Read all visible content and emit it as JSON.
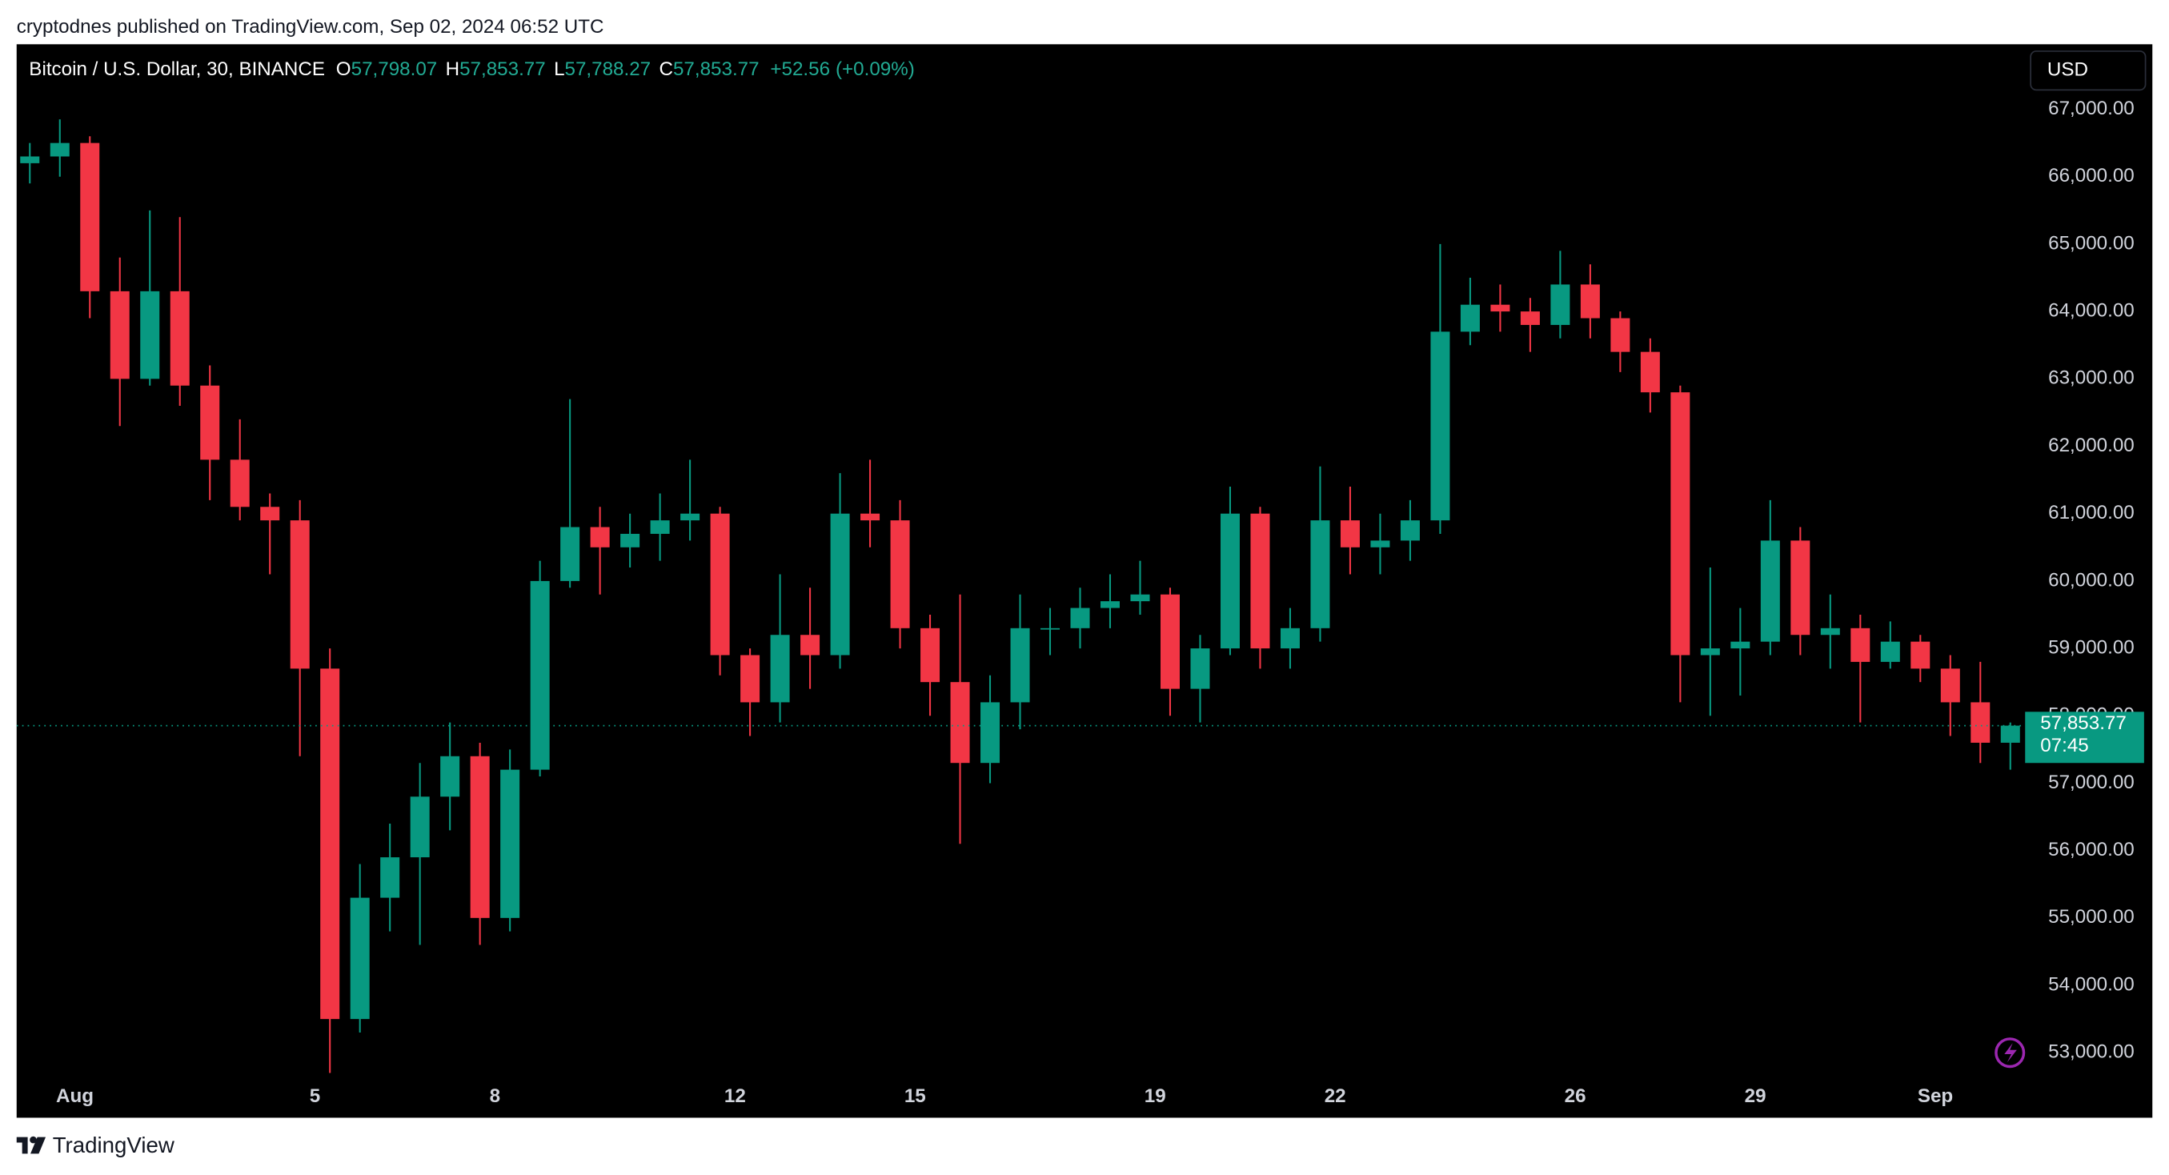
{
  "header": {
    "published": "cryptodnes published on TradingView.com, Sep 02, 2024 06:52 UTC"
  },
  "chart_data": {
    "type": "candlestick",
    "title": "Bitcoin / U.S. Dollar, 30, BINANCE",
    "ohlc_legend": [
      {
        "name": "O",
        "value": 57798.07,
        "label": "57,798.07"
      },
      {
        "name": "H",
        "value": 57853.77,
        "label": "57,853.77"
      },
      {
        "name": "L",
        "value": 57788.27,
        "label": "57,788.27"
      },
      {
        "name": "C",
        "value": 57853.77,
        "label": "57,853.77"
      }
    ],
    "change": {
      "value": 52.56,
      "label": "+52.56"
    },
    "change_pct": {
      "value": 0.09,
      "label": "(+0.09%)"
    },
    "currency": "USD",
    "colors": {
      "up": "#089981",
      "down": "#f23645",
      "legend_value": "#22ab94"
    },
    "x": [
      0.25,
      0.75,
      1.25,
      1.75,
      2.25,
      2.75,
      3.25,
      3.75,
      4.25,
      4.75,
      5.25,
      5.75,
      6.25,
      6.75,
      7.25,
      7.75,
      8.25,
      8.75,
      9.25,
      9.75,
      10.25,
      10.75,
      11.25,
      11.75,
      12.25,
      12.75,
      13.25,
      13.75,
      14.25,
      14.75,
      15.25,
      15.75,
      16.25,
      16.75,
      17.25,
      17.75,
      18.25,
      18.75,
      19.25,
      19.75,
      20.25,
      20.75,
      21.25,
      21.75,
      22.25,
      22.75,
      23.25,
      23.75,
      24.25,
      24.75,
      25.25,
      25.75,
      26.25,
      26.75,
      27.25,
      27.75,
      28.25,
      28.75,
      29.25,
      29.75,
      30.25,
      30.75,
      31.25,
      31.75,
      32.25,
      32.75,
      33.25
    ],
    "open": [
      66200,
      66300,
      66500,
      64300,
      63000,
      64300,
      62900,
      61800,
      61100,
      60900,
      58700,
      53500,
      55300,
      55900,
      56800,
      57400,
      55000,
      57200,
      60000,
      60800,
      60500,
      60700,
      60900,
      61000,
      58900,
      58200,
      59200,
      58900,
      61000,
      60900,
      59300,
      58500,
      57300,
      58200,
      59300,
      59300,
      59600,
      59700,
      59800,
      58400,
      59000,
      61000,
      59000,
      59300,
      60900,
      60500,
      60600,
      60900,
      63700,
      64100,
      64000,
      63800,
      64400,
      63900,
      63400,
      62800,
      58900,
      59000,
      59100,
      60600,
      59200,
      59300,
      58800,
      59100,
      58700,
      58200,
      57600
    ],
    "high": [
      66500,
      66850,
      66600,
      64800,
      65500,
      65400,
      63200,
      62400,
      61300,
      61200,
      59000,
      55800,
      56400,
      57300,
      57900,
      57600,
      57500,
      60300,
      62700,
      61100,
      61000,
      61300,
      61800,
      61100,
      59000,
      60100,
      59900,
      61600,
      61800,
      61200,
      59500,
      59800,
      58600,
      59800,
      59600,
      59900,
      60100,
      60300,
      59900,
      59200,
      61400,
      61100,
      59600,
      61700,
      61400,
      61000,
      61200,
      65000,
      64500,
      64400,
      64200,
      64900,
      64700,
      64000,
      63600,
      62900,
      60200,
      59600,
      61200,
      60800,
      59800,
      59500,
      59400,
      59200,
      58900,
      58800,
      57900
    ],
    "low": [
      65900,
      66000,
      63900,
      62300,
      62900,
      62600,
      61200,
      60900,
      60100,
      57400,
      52700,
      53300,
      54800,
      54600,
      56300,
      54600,
      54800,
      57100,
      59900,
      59800,
      60200,
      60300,
      60600,
      58600,
      57700,
      57900,
      58400,
      58700,
      60500,
      59000,
      58000,
      56100,
      57000,
      57800,
      58900,
      59000,
      59300,
      59500,
      58000,
      57900,
      58900,
      58700,
      58700,
      59100,
      60100,
      60100,
      60300,
      60700,
      63500,
      63700,
      63400,
      63600,
      63600,
      63100,
      62500,
      58200,
      58000,
      58300,
      58900,
      58900,
      58700,
      57900,
      58700,
      58500,
      57700,
      57300,
      57200
    ],
    "close": [
      66300,
      66500,
      64300,
      63000,
      64300,
      62900,
      61800,
      61100,
      60900,
      58700,
      53500,
      55300,
      55900,
      56800,
      57400,
      55000,
      57200,
      60000,
      60800,
      60500,
      60700,
      60900,
      61000,
      58900,
      58200,
      59200,
      58900,
      61000,
      60900,
      59300,
      58500,
      57300,
      58200,
      59300,
      59300,
      59600,
      59700,
      59800,
      58400,
      59000,
      61000,
      59000,
      59300,
      60900,
      60500,
      60600,
      60900,
      63700,
      64100,
      64000,
      63800,
      64400,
      63900,
      63400,
      62800,
      58900,
      59000,
      59100,
      60600,
      59200,
      59300,
      58800,
      59100,
      58700,
      58200,
      57600,
      57853.77
    ],
    "xlim": [
      0.03,
      33.45
    ],
    "xticks": [
      {
        "value": 1,
        "label": "Aug"
      },
      5,
      8,
      12,
      15,
      19,
      22,
      26,
      29,
      {
        "value": 32,
        "label": "Sep"
      }
    ],
    "ylim": [
      52610,
      67965
    ],
    "yticks": [
      {
        "value": 53000,
        "label": "53,000.00"
      },
      {
        "value": 54000,
        "label": "54,000.00"
      },
      {
        "value": 55000,
        "label": "55,000.00"
      },
      {
        "value": 56000,
        "label": "56,000.00"
      },
      {
        "value": 57000,
        "label": "57,000.00"
      },
      {
        "value": 58000,
        "label": "58,000.00"
      },
      {
        "value": 59000,
        "label": "59,000.00"
      },
      {
        "value": 60000,
        "label": "60,000.00"
      },
      {
        "value": 61000,
        "label": "61,000.00"
      },
      {
        "value": 62000,
        "label": "62,000.00"
      },
      {
        "value": 63000,
        "label": "63,000.00"
      },
      {
        "value": 64000,
        "label": "64,000.00"
      },
      {
        "value": 65000,
        "label": "65,000.00"
      },
      {
        "value": 66000,
        "label": "66,000.00"
      },
      {
        "value": 67000,
        "label": "67,000.00"
      }
    ],
    "last_price": {
      "value": 57853.77,
      "label": "57,853.77"
    },
    "countdown": "07:45"
  },
  "footer": {
    "brand": "TradingView"
  }
}
